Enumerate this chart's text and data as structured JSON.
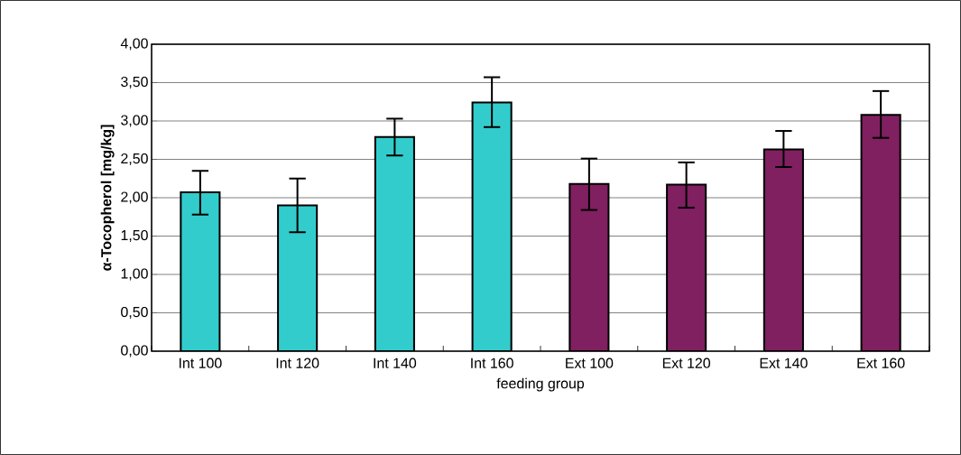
{
  "chart_data": {
    "type": "bar",
    "xlabel": "feeding group",
    "ylabel": "α-Tocopherol [mg/kg]",
    "categories": [
      "Int 100",
      "Int 120",
      "Int 140",
      "Int 160",
      "Ext 100",
      "Ext 120",
      "Ext 140",
      "Ext 160"
    ],
    "values": [
      2.07,
      1.9,
      2.79,
      3.24,
      2.18,
      2.17,
      2.63,
      3.08
    ],
    "errors": [
      [
        1.78,
        2.35
      ],
      [
        1.55,
        2.25
      ],
      [
        2.55,
        3.03
      ],
      [
        2.92,
        3.57
      ],
      [
        1.84,
        2.51
      ],
      [
        1.87,
        2.46
      ],
      [
        2.4,
        2.87
      ],
      [
        2.78,
        3.39
      ]
    ],
    "colors": [
      "#33cccc",
      "#33cccc",
      "#33cccc",
      "#33cccc",
      "#802060",
      "#802060",
      "#802060",
      "#802060"
    ],
    "ylim": [
      0,
      4
    ],
    "yticks": [
      {
        "value": 0,
        "label": "0,00"
      },
      {
        "value": 0.5,
        "label": "0,50"
      },
      {
        "value": 1,
        "label": "1,00"
      },
      {
        "value": 1.5,
        "label": "1,50"
      },
      {
        "value": 2,
        "label": "2,00"
      },
      {
        "value": 2.5,
        "label": "2,50"
      },
      {
        "value": 3,
        "label": "3,00"
      },
      {
        "value": 3.5,
        "label": "3,50"
      },
      {
        "value": 4,
        "label": "4,00"
      }
    ],
    "grid": "y"
  }
}
